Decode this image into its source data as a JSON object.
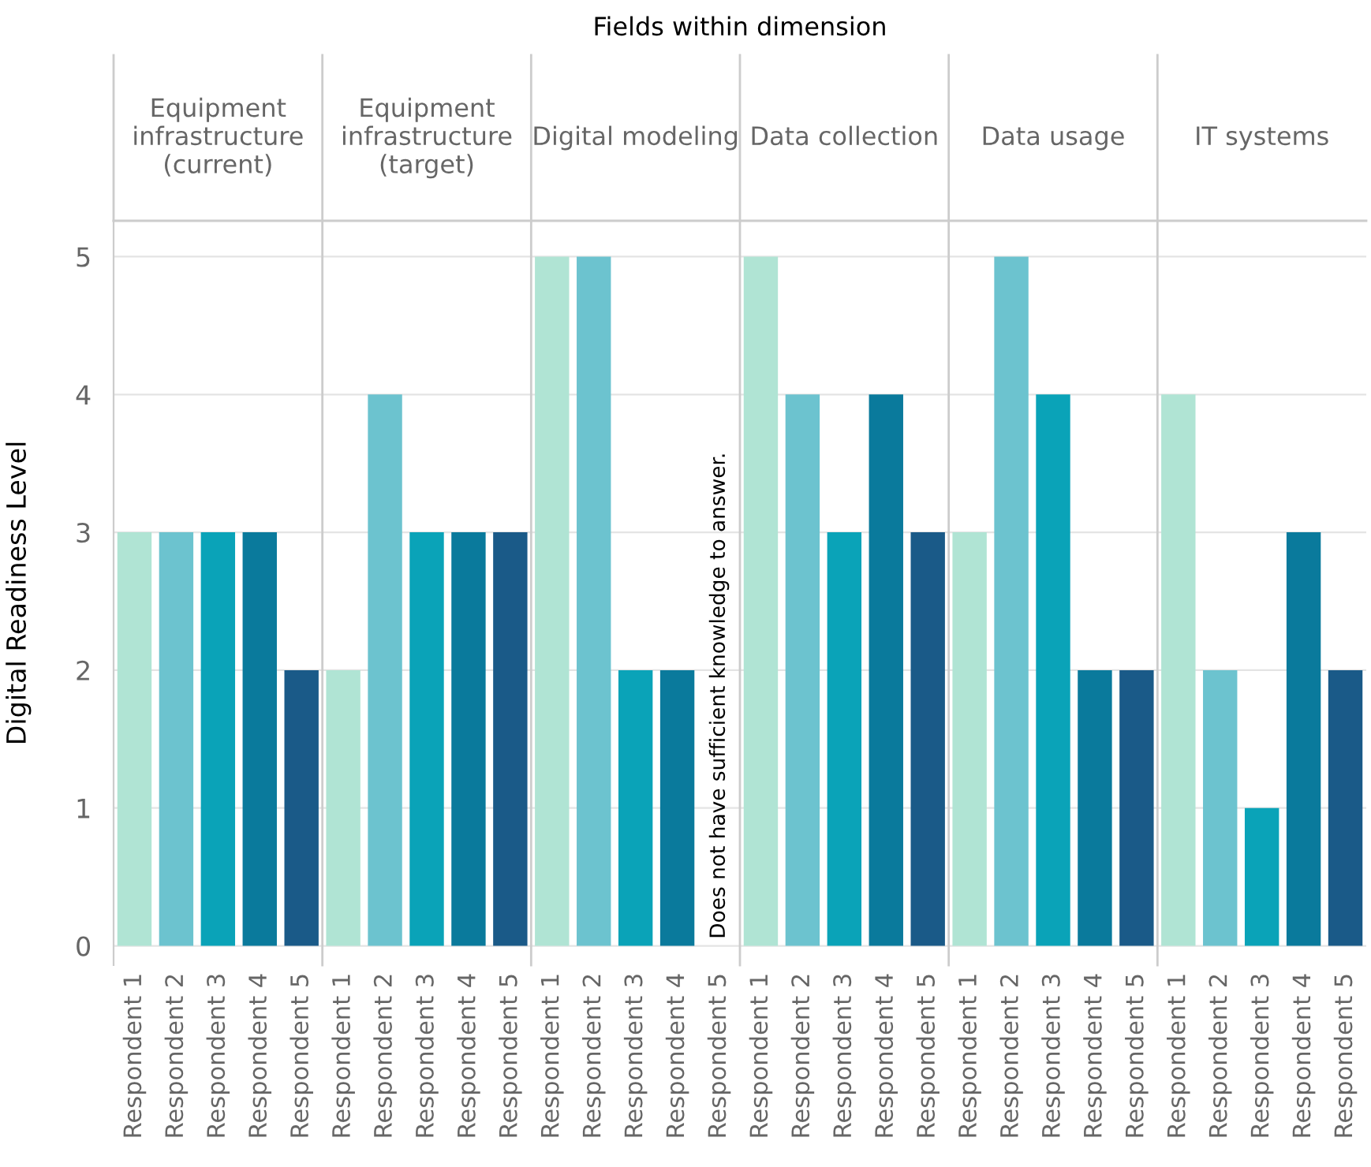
{
  "chart_data": {
    "type": "bar",
    "title": "Fields within dimension",
    "ylabel": "Digital Readiness Level",
    "annotations": [
      "Equipment\ninfrastructure\n(current)",
      "Equipment\ninfrastructure\n(target)",
      "Digital modeling",
      "Data collection",
      "Data usage",
      "IT systems",
      "Does not have sufficient knowledge to answer."
    ],
    "categories": [
      "Respondent 1",
      "Respondent 2",
      "Respondent 3",
      "Respondent 4",
      "Respondent 5",
      "Respondent 1",
      "Respondent 2",
      "Respondent 3",
      "Respondent 4",
      "Respondent 5",
      "Respondent 1",
      "Respondent 2",
      "Respondent 3",
      "Respondent 4",
      "Respondent 5",
      "Respondent 1",
      "Respondent 2",
      "Respondent 3",
      "Respondent 4",
      "Respondent 5",
      "Respondent 1",
      "Respondent 2",
      "Respondent 3",
      "Respondent 4",
      "Respondent 5",
      "Respondent 1",
      "Respondent 2",
      "Respondent 3",
      "Respondent 4",
      "Respondent 5"
    ],
    "values": [
      3,
      3,
      3,
      3,
      2,
      2,
      4,
      3,
      3,
      3,
      5,
      5,
      2,
      2,
      null,
      5,
      4,
      3,
      4,
      3,
      3,
      5,
      4,
      2,
      2,
      4,
      2,
      1,
      3,
      2
    ],
    "colors": [
      "#b0e4d4",
      "#6cc3cf",
      "#0aa3b8",
      "#0a7a9c",
      "#1a5a88",
      "#b0e4d4",
      "#6cc3cf",
      "#0aa3b8",
      "#0a7a9c",
      "#1a5a88",
      "#b0e4d4",
      "#6cc3cf",
      "#0aa3b8",
      "#0a7a9c",
      "#1a5a88",
      "#b0e4d4",
      "#6cc3cf",
      "#0aa3b8",
      "#0a7a9c",
      "#1a5a88",
      "#b0e4d4",
      "#6cc3cf",
      "#0aa3b8",
      "#0a7a9c",
      "#1a5a88",
      "#b0e4d4",
      "#6cc3cf",
      "#0aa3b8",
      "#0a7a9c",
      "#1a5a88"
    ],
    "ylim": [
      -0.14,
      5.26
    ],
    "yticks": [
      0,
      1,
      2,
      3,
      4,
      5
    ],
    "grid": "y"
  }
}
